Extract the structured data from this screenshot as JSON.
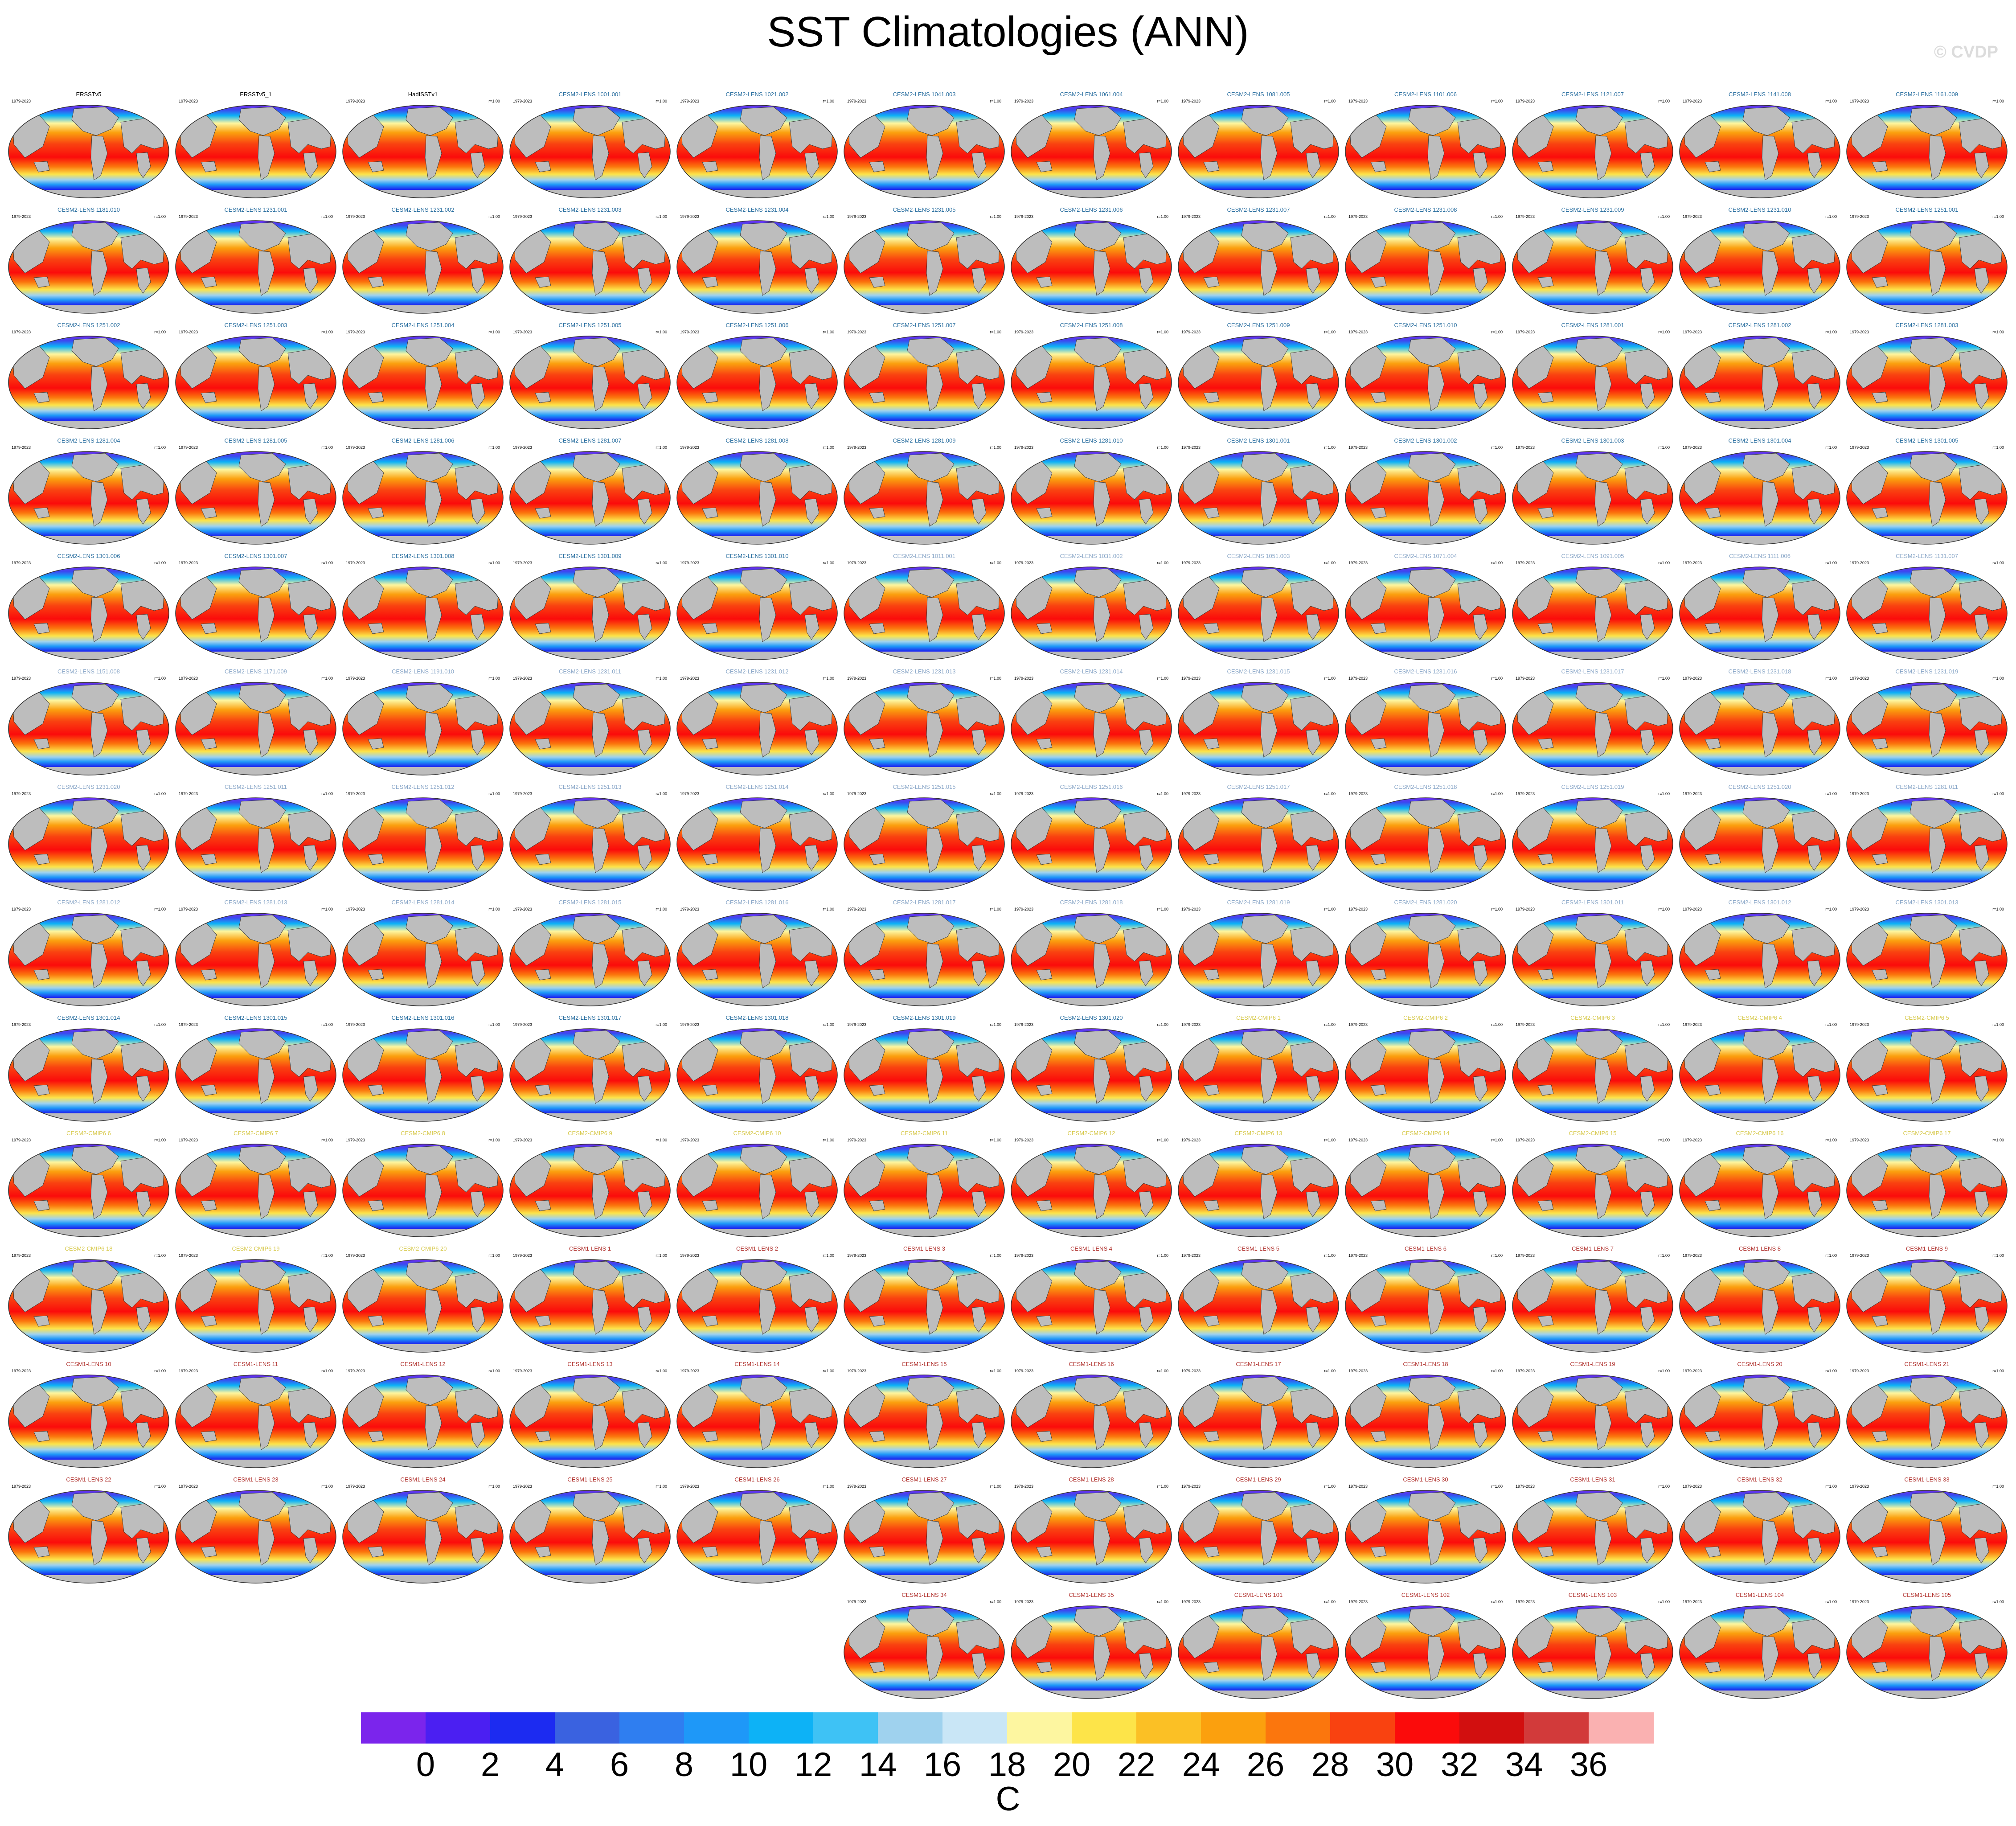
{
  "title": "SST Climatologies (ANN)",
  "watermark": "© CVDP",
  "panel_years": "1979-2023",
  "panel_r": "r=1.00",
  "title_colors": {
    "obs": "#000000",
    "cesm2_a": "#2a6fa0",
    "cesm2_b": "#8aa7c8",
    "cmip6": "#d7c94c",
    "cesm1": "#b0302c"
  },
  "panels": [
    {
      "label": "ERSSTv5",
      "group": "obs"
    },
    {
      "label": "ERSSTv5_1",
      "group": "obs"
    },
    {
      "label": "HadISSTv1",
      "group": "obs"
    },
    {
      "label": "CESM2-LENS 1001.001",
      "group": "cesm2_a"
    },
    {
      "label": "CESM2-LENS 1021.002",
      "group": "cesm2_a"
    },
    {
      "label": "CESM2-LENS 1041.003",
      "group": "cesm2_a"
    },
    {
      "label": "CESM2-LENS 1061.004",
      "group": "cesm2_a"
    },
    {
      "label": "CESM2-LENS 1081.005",
      "group": "cesm2_a"
    },
    {
      "label": "CESM2-LENS 1101.006",
      "group": "cesm2_a"
    },
    {
      "label": "CESM2-LENS 1121.007",
      "group": "cesm2_a"
    },
    {
      "label": "CESM2-LENS 1141.008",
      "group": "cesm2_a"
    },
    {
      "label": "CESM2-LENS 1161.009",
      "group": "cesm2_a"
    },
    {
      "label": "CESM2-LENS 1181.010",
      "group": "cesm2_a"
    },
    {
      "label": "CESM2-LENS 1231.001",
      "group": "cesm2_a"
    },
    {
      "label": "CESM2-LENS 1231.002",
      "group": "cesm2_a"
    },
    {
      "label": "CESM2-LENS 1231.003",
      "group": "cesm2_a"
    },
    {
      "label": "CESM2-LENS 1231.004",
      "group": "cesm2_a"
    },
    {
      "label": "CESM2-LENS 1231.005",
      "group": "cesm2_a"
    },
    {
      "label": "CESM2-LENS 1231.006",
      "group": "cesm2_a"
    },
    {
      "label": "CESM2-LENS 1231.007",
      "group": "cesm2_a"
    },
    {
      "label": "CESM2-LENS 1231.008",
      "group": "cesm2_a"
    },
    {
      "label": "CESM2-LENS 1231.009",
      "group": "cesm2_a"
    },
    {
      "label": "CESM2-LENS 1231.010",
      "group": "cesm2_a"
    },
    {
      "label": "CESM2-LENS 1251.001",
      "group": "cesm2_a"
    },
    {
      "label": "CESM2-LENS 1251.002",
      "group": "cesm2_a"
    },
    {
      "label": "CESM2-LENS 1251.003",
      "group": "cesm2_a"
    },
    {
      "label": "CESM2-LENS 1251.004",
      "group": "cesm2_a"
    },
    {
      "label": "CESM2-LENS 1251.005",
      "group": "cesm2_a"
    },
    {
      "label": "CESM2-LENS 1251.006",
      "group": "cesm2_a"
    },
    {
      "label": "CESM2-LENS 1251.007",
      "group": "cesm2_a"
    },
    {
      "label": "CESM2-LENS 1251.008",
      "group": "cesm2_a"
    },
    {
      "label": "CESM2-LENS 1251.009",
      "group": "cesm2_a"
    },
    {
      "label": "CESM2-LENS 1251.010",
      "group": "cesm2_a"
    },
    {
      "label": "CESM2-LENS 1281.001",
      "group": "cesm2_a"
    },
    {
      "label": "CESM2-LENS 1281.002",
      "group": "cesm2_a"
    },
    {
      "label": "CESM2-LENS 1281.003",
      "group": "cesm2_a"
    },
    {
      "label": "CESM2-LENS 1281.004",
      "group": "cesm2_a"
    },
    {
      "label": "CESM2-LENS 1281.005",
      "group": "cesm2_a"
    },
    {
      "label": "CESM2-LENS 1281.006",
      "group": "cesm2_a"
    },
    {
      "label": "CESM2-LENS 1281.007",
      "group": "cesm2_a"
    },
    {
      "label": "CESM2-LENS 1281.008",
      "group": "cesm2_a"
    },
    {
      "label": "CESM2-LENS 1281.009",
      "group": "cesm2_a"
    },
    {
      "label": "CESM2-LENS 1281.010",
      "group": "cesm2_a"
    },
    {
      "label": "CESM2-LENS 1301.001",
      "group": "cesm2_a"
    },
    {
      "label": "CESM2-LENS 1301.002",
      "group": "cesm2_a"
    },
    {
      "label": "CESM2-LENS 1301.003",
      "group": "cesm2_a"
    },
    {
      "label": "CESM2-LENS 1301.004",
      "group": "cesm2_a"
    },
    {
      "label": "CESM2-LENS 1301.005",
      "group": "cesm2_a"
    },
    {
      "label": "CESM2-LENS 1301.006",
      "group": "cesm2_a"
    },
    {
      "label": "CESM2-LENS 1301.007",
      "group": "cesm2_a"
    },
    {
      "label": "CESM2-LENS 1301.008",
      "group": "cesm2_a"
    },
    {
      "label": "CESM2-LENS 1301.009",
      "group": "cesm2_a"
    },
    {
      "label": "CESM2-LENS 1301.010",
      "group": "cesm2_a"
    },
    {
      "label": "CESM2-LENS 1011.001",
      "group": "cesm2_b"
    },
    {
      "label": "CESM2-LENS 1031.002",
      "group": "cesm2_b"
    },
    {
      "label": "CESM2-LENS 1051.003",
      "group": "cesm2_b"
    },
    {
      "label": "CESM2-LENS 1071.004",
      "group": "cesm2_b"
    },
    {
      "label": "CESM2-LENS 1091.005",
      "group": "cesm2_b"
    },
    {
      "label": "CESM2-LENS 1111.006",
      "group": "cesm2_b"
    },
    {
      "label": "CESM2-LENS 1131.007",
      "group": "cesm2_b"
    },
    {
      "label": "CESM2-LENS 1151.008",
      "group": "cesm2_b"
    },
    {
      "label": "CESM2-LENS 1171.009",
      "group": "cesm2_b"
    },
    {
      "label": "CESM2-LENS 1191.010",
      "group": "cesm2_b"
    },
    {
      "label": "CESM2-LENS 1231.011",
      "group": "cesm2_b"
    },
    {
      "label": "CESM2-LENS 1231.012",
      "group": "cesm2_b"
    },
    {
      "label": "CESM2-LENS 1231.013",
      "group": "cesm2_b"
    },
    {
      "label": "CESM2-LENS 1231.014",
      "group": "cesm2_b"
    },
    {
      "label": "CESM2-LENS 1231.015",
      "group": "cesm2_b"
    },
    {
      "label": "CESM2-LENS 1231.016",
      "group": "cesm2_b"
    },
    {
      "label": "CESM2-LENS 1231.017",
      "group": "cesm2_b"
    },
    {
      "label": "CESM2-LENS 1231.018",
      "group": "cesm2_b"
    },
    {
      "label": "CESM2-LENS 1231.019",
      "group": "cesm2_b"
    },
    {
      "label": "CESM2-LENS 1231.020",
      "group": "cesm2_b"
    },
    {
      "label": "CESM2-LENS 1251.011",
      "group": "cesm2_b"
    },
    {
      "label": "CESM2-LENS 1251.012",
      "group": "cesm2_b"
    },
    {
      "label": "CESM2-LENS 1251.013",
      "group": "cesm2_b"
    },
    {
      "label": "CESM2-LENS 1251.014",
      "group": "cesm2_b"
    },
    {
      "label": "CESM2-LENS 1251.015",
      "group": "cesm2_b"
    },
    {
      "label": "CESM2-LENS 1251.016",
      "group": "cesm2_b"
    },
    {
      "label": "CESM2-LENS 1251.017",
      "group": "cesm2_b"
    },
    {
      "label": "CESM2-LENS 1251.018",
      "group": "cesm2_b"
    },
    {
      "label": "CESM2-LENS 1251.019",
      "group": "cesm2_b"
    },
    {
      "label": "CESM2-LENS 1251.020",
      "group": "cesm2_b"
    },
    {
      "label": "CESM2-LENS 1281.011",
      "group": "cesm2_b"
    },
    {
      "label": "CESM2-LENS 1281.012",
      "group": "cesm2_b"
    },
    {
      "label": "CESM2-LENS 1281.013",
      "group": "cesm2_b"
    },
    {
      "label": "CESM2-LENS 1281.014",
      "group": "cesm2_b"
    },
    {
      "label": "CESM2-LENS 1281.015",
      "group": "cesm2_b"
    },
    {
      "label": "CESM2-LENS 1281.016",
      "group": "cesm2_b"
    },
    {
      "label": "CESM2-LENS 1281.017",
      "group": "cesm2_b"
    },
    {
      "label": "CESM2-LENS 1281.018",
      "group": "cesm2_b"
    },
    {
      "label": "CESM2-LENS 1281.019",
      "group": "cesm2_b"
    },
    {
      "label": "CESM2-LENS 1281.020",
      "group": "cesm2_b"
    },
    {
      "label": "CESM2-LENS 1301.011",
      "group": "cesm2_b"
    },
    {
      "label": "CESM2-LENS 1301.012",
      "group": "cesm2_b"
    },
    {
      "label": "CESM2-LENS 1301.013",
      "group": "cesm2_b"
    },
    {
      "label": "CESM2-LENS 1301.014",
      "group": "cesm2_a"
    },
    {
      "label": "CESM2-LENS 1301.015",
      "group": "cesm2_a"
    },
    {
      "label": "CESM2-LENS 1301.016",
      "group": "cesm2_a"
    },
    {
      "label": "CESM2-LENS 1301.017",
      "group": "cesm2_a"
    },
    {
      "label": "CESM2-LENS 1301.018",
      "group": "cesm2_a"
    },
    {
      "label": "CESM2-LENS 1301.019",
      "group": "cesm2_a"
    },
    {
      "label": "CESM2-LENS 1301.020",
      "group": "cesm2_a"
    },
    {
      "label": "CESM2-CMIP6 1",
      "group": "cmip6"
    },
    {
      "label": "CESM2-CMIP6 2",
      "group": "cmip6"
    },
    {
      "label": "CESM2-CMIP6 3",
      "group": "cmip6"
    },
    {
      "label": "CESM2-CMIP6 4",
      "group": "cmip6"
    },
    {
      "label": "CESM2-CMIP6 5",
      "group": "cmip6"
    },
    {
      "label": "CESM2-CMIP6 6",
      "group": "cmip6"
    },
    {
      "label": "CESM2-CMIP6 7",
      "group": "cmip6"
    },
    {
      "label": "CESM2-CMIP6 8",
      "group": "cmip6"
    },
    {
      "label": "CESM2-CMIP6 9",
      "group": "cmip6"
    },
    {
      "label": "CESM2-CMIP6 10",
      "group": "cmip6"
    },
    {
      "label": "CESM2-CMIP6 11",
      "group": "cmip6"
    },
    {
      "label": "CESM2-CMIP6 12",
      "group": "cmip6"
    },
    {
      "label": "CESM2-CMIP6 13",
      "group": "cmip6"
    },
    {
      "label": "CESM2-CMIP6 14",
      "group": "cmip6"
    },
    {
      "label": "CESM2-CMIP6 15",
      "group": "cmip6"
    },
    {
      "label": "CESM2-CMIP6 16",
      "group": "cmip6"
    },
    {
      "label": "CESM2-CMIP6 17",
      "group": "cmip6"
    },
    {
      "label": "CESM2-CMIP6 18",
      "group": "cmip6"
    },
    {
      "label": "CESM2-CMIP6 19",
      "group": "cmip6"
    },
    {
      "label": "CESM2-CMIP6 20",
      "group": "cmip6"
    },
    {
      "label": "CESM1-LENS 1",
      "group": "cesm1"
    },
    {
      "label": "CESM1-LENS 2",
      "group": "cesm1"
    },
    {
      "label": "CESM1-LENS 3",
      "group": "cesm1"
    },
    {
      "label": "CESM1-LENS 4",
      "group": "cesm1"
    },
    {
      "label": "CESM1-LENS 5",
      "group": "cesm1"
    },
    {
      "label": "CESM1-LENS 6",
      "group": "cesm1"
    },
    {
      "label": "CESM1-LENS 7",
      "group": "cesm1"
    },
    {
      "label": "CESM1-LENS 8",
      "group": "cesm1"
    },
    {
      "label": "CESM1-LENS 9",
      "group": "cesm1"
    },
    {
      "label": "CESM1-LENS 10",
      "group": "cesm1"
    },
    {
      "label": "CESM1-LENS 11",
      "group": "cesm1"
    },
    {
      "label": "CESM1-LENS 12",
      "group": "cesm1"
    },
    {
      "label": "CESM1-LENS 13",
      "group": "cesm1"
    },
    {
      "label": "CESM1-LENS 14",
      "group": "cesm1"
    },
    {
      "label": "CESM1-LENS 15",
      "group": "cesm1"
    },
    {
      "label": "CESM1-LENS 16",
      "group": "cesm1"
    },
    {
      "label": "CESM1-LENS 17",
      "group": "cesm1"
    },
    {
      "label": "CESM1-LENS 18",
      "group": "cesm1"
    },
    {
      "label": "CESM1-LENS 19",
      "group": "cesm1"
    },
    {
      "label": "CESM1-LENS 20",
      "group": "cesm1"
    },
    {
      "label": "CESM1-LENS 21",
      "group": "cesm1"
    },
    {
      "label": "CESM1-LENS 22",
      "group": "cesm1"
    },
    {
      "label": "CESM1-LENS 23",
      "group": "cesm1"
    },
    {
      "label": "CESM1-LENS 24",
      "group": "cesm1"
    },
    {
      "label": "CESM1-LENS 25",
      "group": "cesm1"
    },
    {
      "label": "CESM1-LENS 26",
      "group": "cesm1"
    },
    {
      "label": "CESM1-LENS 27",
      "group": "cesm1"
    },
    {
      "label": "CESM1-LENS 28",
      "group": "cesm1"
    },
    {
      "label": "CESM1-LENS 29",
      "group": "cesm1"
    },
    {
      "label": "CESM1-LENS 30",
      "group": "cesm1"
    },
    {
      "label": "CESM1-LENS 31",
      "group": "cesm1"
    },
    {
      "label": "CESM1-LENS 32",
      "group": "cesm1"
    },
    {
      "label": "CESM1-LENS 33",
      "group": "cesm1"
    },
    {
      "label": "CESM1-LENS 34",
      "group": "cesm1"
    },
    {
      "label": "CESM1-LENS 35",
      "group": "cesm1"
    },
    {
      "label": "CESM1-LENS 101",
      "group": "cesm1"
    },
    {
      "label": "CESM1-LENS 102",
      "group": "cesm1"
    },
    {
      "label": "CESM1-LENS 103",
      "group": "cesm1"
    },
    {
      "label": "CESM1-LENS 104",
      "group": "cesm1"
    },
    {
      "label": "CESM1-LENS 105",
      "group": "cesm1"
    }
  ],
  "colorbar": {
    "unit": "C",
    "tick_labels": [
      "0",
      "2",
      "4",
      "6",
      "8",
      "10",
      "12",
      "14",
      "16",
      "18",
      "20",
      "22",
      "24",
      "26",
      "28",
      "30",
      "32",
      "34",
      "36"
    ],
    "colors": [
      "#7b25ec",
      "#4b1ff2",
      "#1c2bf1",
      "#3a62e0",
      "#2f7ef0",
      "#1e98f8",
      "#0db2f6",
      "#3ec2f5",
      "#9fd2ee",
      "#c9e6f6",
      "#fdf6a0",
      "#fde449",
      "#fbc025",
      "#fba00e",
      "#fb760d",
      "#f94210",
      "#fb0b0b",
      "#d20f0f",
      "#d23a3a",
      "#fab1b1"
    ]
  }
}
